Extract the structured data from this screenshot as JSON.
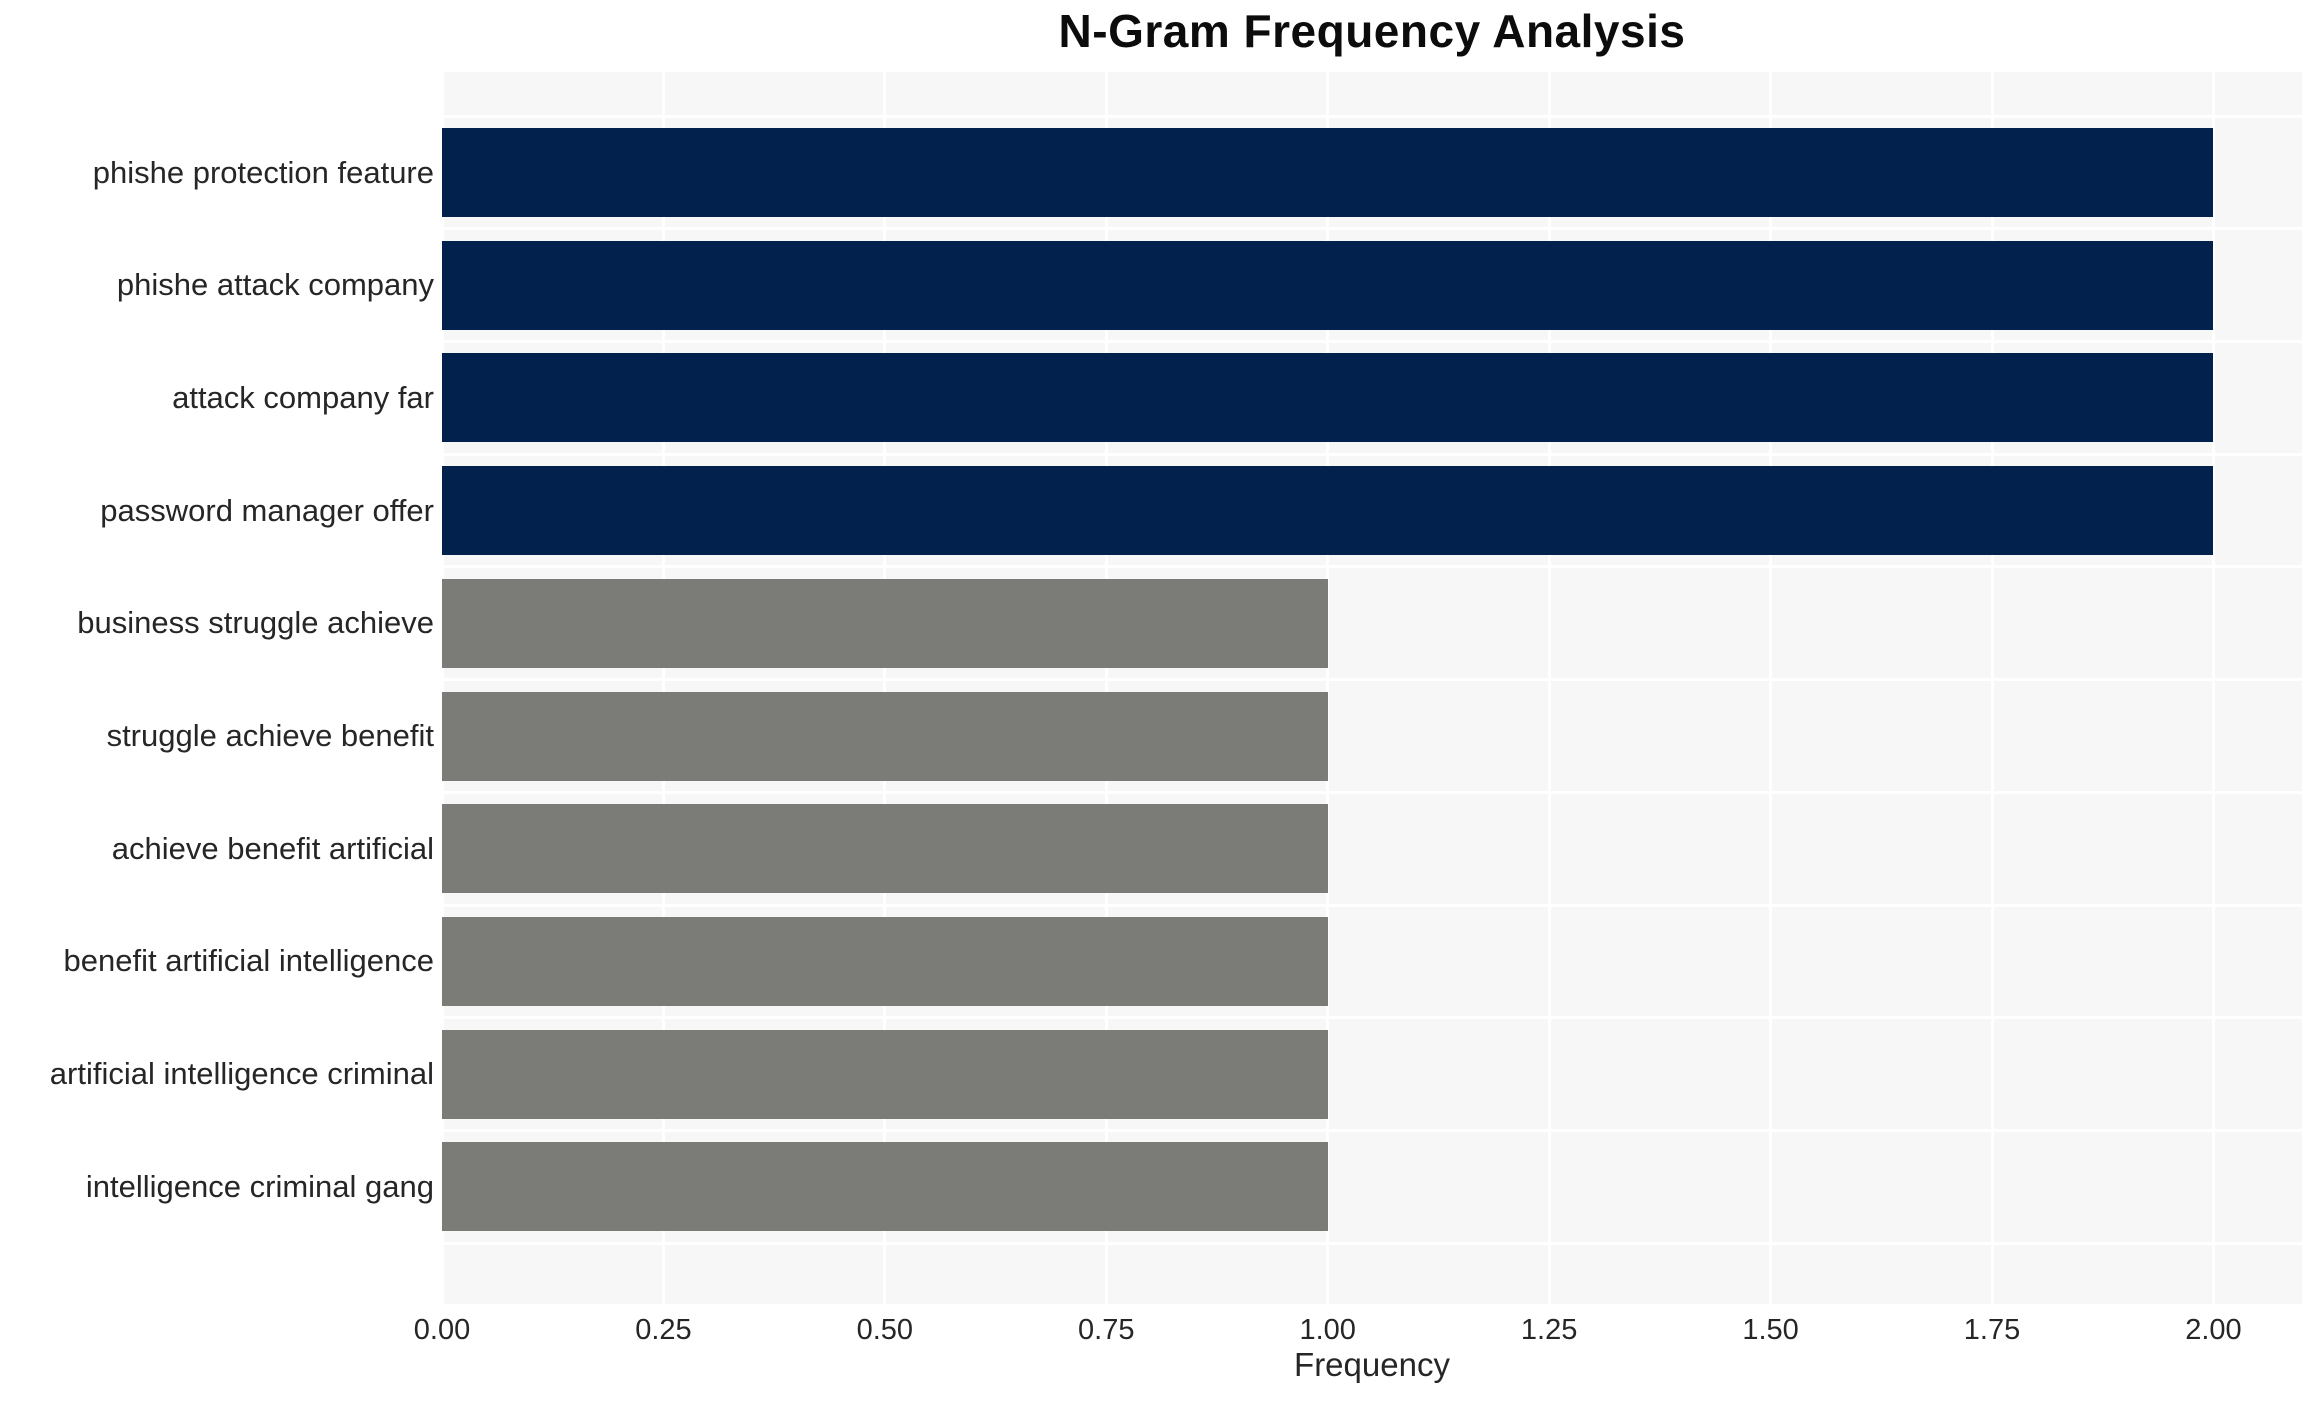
{
  "title": "N-Gram Frequency Analysis",
  "chart_data": {
    "type": "bar",
    "orientation": "horizontal",
    "title": "N-Gram Frequency Analysis",
    "xlabel": "Frequency",
    "ylabel": "",
    "categories": [
      "phishe protection feature",
      "phishe attack company",
      "attack company far",
      "password manager offer",
      "business struggle achieve",
      "struggle achieve benefit",
      "achieve benefit artificial",
      "benefit artificial intelligence",
      "artificial intelligence criminal",
      "intelligence criminal gang"
    ],
    "values": [
      2,
      2,
      2,
      2,
      1,
      1,
      1,
      1,
      1,
      1
    ],
    "bar_colors": [
      "#02214d",
      "#02214d",
      "#02214d",
      "#02214d",
      "#7b7b77",
      "#7b7b77",
      "#7b7b77",
      "#7b7b77",
      "#7b7b77",
      "#7b7b77"
    ],
    "xlim": [
      0,
      2.1
    ],
    "xtick_values": [
      0,
      0.25,
      0.5,
      0.75,
      1.0,
      1.25,
      1.5,
      1.75,
      2.0
    ],
    "xtick_labels": [
      "0.00",
      "0.25",
      "0.50",
      "0.75",
      "1.00",
      "1.25",
      "1.50",
      "1.75",
      "2.00"
    ],
    "grid": "white vertical lines at ticks, white horizontal lines between rows",
    "plot_background": "#f7f7f7",
    "grid_color": "#ffffff",
    "legend": "none"
  }
}
